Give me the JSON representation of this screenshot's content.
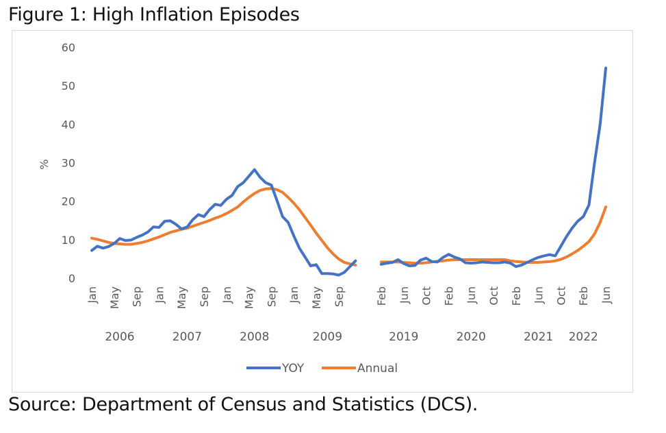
{
  "figure_title": "Figure 1: High Inflation Episodes",
  "source_note": "Source: Department of Census and Statistics (DCS).",
  "chart_data": {
    "type": "line",
    "title": "Figure 1: High Inflation Episodes",
    "xlabel": "",
    "ylabel": "%",
    "ylim": [
      0,
      60
    ],
    "yticks": [
      0,
      10,
      20,
      30,
      40,
      50,
      60
    ],
    "grid": false,
    "legend": "bottom",
    "colors": {
      "YOY": "#4472c4",
      "Annual": "#ed7d31"
    },
    "panels": [
      {
        "period": "2006-2009",
        "start": "2006-01",
        "months": 48,
        "tick_labels": [
          "Jan",
          "May",
          "Sep",
          "Jan",
          "May",
          "Sep",
          "Jan",
          "May",
          "Sep",
          "Jan",
          "May",
          "Sep"
        ],
        "tick_month_index": [
          0,
          4,
          8,
          12,
          16,
          20,
          24,
          28,
          32,
          36,
          40,
          44
        ],
        "year_labels": [
          "2006",
          "2007",
          "2008",
          "2009"
        ],
        "year_label_month_index": [
          5,
          17,
          29,
          42
        ],
        "series": [
          {
            "name": "YOY",
            "values": [
              7.2,
              8.3,
              7.8,
              8.2,
              9.0,
              10.3,
              9.8,
              9.9,
              10.6,
              11.2,
              12.0,
              13.3,
              13.2,
              14.8,
              14.9,
              14.0,
              12.8,
              13.3,
              15.2,
              16.5,
              16.0,
              17.8,
              19.2,
              18.9,
              20.5,
              21.5,
              23.8,
              24.8,
              26.5,
              28.2,
              26.2,
              24.8,
              24.2,
              20.2,
              16.0,
              14.5,
              11.0,
              7.8,
              5.5,
              3.2,
              3.5,
              1.2,
              1.2,
              1.1,
              0.8,
              1.5,
              3.0,
              4.5
            ]
          },
          {
            "name": "Annual",
            "values": [
              10.4,
              10.1,
              9.7,
              9.3,
              9.0,
              8.9,
              8.8,
              8.8,
              9.0,
              9.3,
              9.7,
              10.2,
              10.7,
              11.3,
              11.9,
              12.3,
              12.7,
              13.0,
              13.5,
              14.0,
              14.5,
              15.0,
              15.6,
              16.1,
              16.8,
              17.6,
              18.5,
              19.8,
              21.0,
              22.0,
              22.8,
              23.2,
              23.3,
              23.0,
              22.3,
              21.0,
              19.5,
              17.8,
              15.8,
              13.8,
              11.7,
              9.8,
              7.9,
              6.3,
              5.0,
              4.1,
              3.7,
              3.4
            ]
          }
        ]
      },
      {
        "period": "2019-2022",
        "start": "2019-02",
        "months": 41,
        "tick_labels": [
          "Feb",
          "Jun",
          "Oct",
          "Feb",
          "Jun",
          "Oct",
          "Feb",
          "Jun",
          "Oct",
          "Feb",
          "Jun"
        ],
        "tick_month_index": [
          0,
          4,
          8,
          12,
          16,
          20,
          24,
          28,
          32,
          36,
          40
        ],
        "year_labels": [
          "2019",
          "2020",
          "2021",
          "2022"
        ],
        "year_label_month_index": [
          4,
          16,
          28,
          36
        ],
        "series": [
          {
            "name": "YOY",
            "values": [
              3.6,
              3.9,
              4.1,
              4.8,
              3.8,
              3.2,
              3.3,
              4.7,
              5.2,
              4.3,
              4.2,
              5.4,
              6.2,
              5.5,
              5.0,
              4.0,
              3.9,
              4.0,
              4.2,
              4.1,
              4.0,
              4.0,
              4.2,
              3.9,
              3.0,
              3.4,
              4.1,
              4.8,
              5.4,
              5.8,
              6.1,
              5.8,
              8.3,
              10.8,
              13.0,
              14.8,
              16.0,
              19.0,
              30.0,
              40.0,
              54.6
            ]
          },
          {
            "name": "Annual",
            "values": [
              4.2,
              4.2,
              4.2,
              4.2,
              4.1,
              4.0,
              3.9,
              3.9,
              4.0,
              4.2,
              4.4,
              4.5,
              4.7,
              4.8,
              4.8,
              4.8,
              4.8,
              4.8,
              4.8,
              4.8,
              4.8,
              4.8,
              4.8,
              4.5,
              4.3,
              4.2,
              4.1,
              4.1,
              4.1,
              4.2,
              4.3,
              4.5,
              4.9,
              5.5,
              6.3,
              7.2,
              8.3,
              9.5,
              11.5,
              14.5,
              18.5
            ]
          }
        ]
      }
    ]
  },
  "legend": {
    "items": [
      {
        "label": "YOY",
        "color": "#4472c4"
      },
      {
        "label": "Annual",
        "color": "#ed7d31"
      }
    ]
  }
}
